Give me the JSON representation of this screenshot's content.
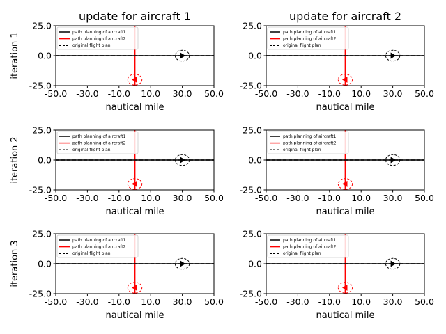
{
  "column_titles": [
    "update for aircraft 1",
    "update for aircraft 2"
  ],
  "row_labels": [
    "iteration 1",
    "iteration 2",
    "iteration 3"
  ],
  "chart_data": {
    "type": "line",
    "xlabel": "nautical mile",
    "xlim": [
      -50,
      50
    ],
    "ylim": [
      -25,
      25
    ],
    "xticks": [
      "-50.0",
      "-30.0",
      "-10.0",
      "10.0",
      "30.0",
      "50.0"
    ],
    "yticks": [
      "-25.0",
      "0.0",
      "25.0"
    ],
    "legend": {
      "placement": "upper-left",
      "entries": [
        {
          "label": "path planning of aircraft1",
          "color": "#000000",
          "style": "solid"
        },
        {
          "label": "path planning of aircraft2",
          "color": "#ff0000",
          "style": "solid"
        },
        {
          "label": "original flight plan",
          "color": "#000000",
          "style": "dashed"
        }
      ]
    },
    "series": [
      {
        "name": "path planning of aircraft1",
        "color": "#000000",
        "style": "solid",
        "x": [
          -50,
          50
        ],
        "y": [
          0,
          0
        ]
      },
      {
        "name": "path planning of aircraft2",
        "color": "#ff0000",
        "style": "solid",
        "x": [
          0,
          0
        ],
        "y": [
          -25,
          25
        ]
      },
      {
        "name": "original flight plan",
        "color": "#000000",
        "style": "dashed",
        "x": [
          -50,
          50
        ],
        "y": [
          0,
          0
        ]
      }
    ],
    "markers": [
      {
        "aircraft": "aircraft1",
        "x": 30,
        "y": 0,
        "direction": "right",
        "color": "#000000",
        "zone_radius": 4.5
      },
      {
        "aircraft": "aircraft2",
        "x": 0,
        "y": -20,
        "direction": "left",
        "color": "#ff0000",
        "zone_radius": 4.5
      }
    ]
  }
}
